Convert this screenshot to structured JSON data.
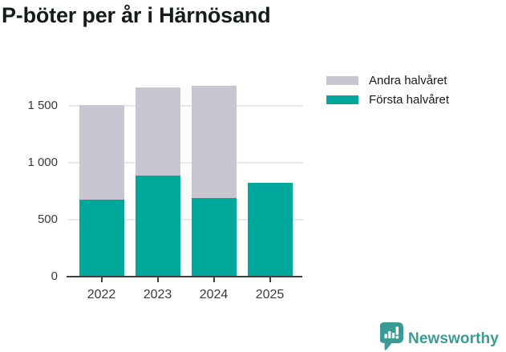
{
  "title": "P-böter per år i Härnösand",
  "legend": {
    "items": [
      {
        "label": "Andra halvåret",
        "color": "#c9c6d1"
      },
      {
        "label": "Första halvåret",
        "color": "#00a79b"
      }
    ]
  },
  "chart_data": {
    "type": "bar",
    "stacked": true,
    "title": "P-böter per år i Härnösand",
    "categories": [
      "2022",
      "2023",
      "2024",
      "2025"
    ],
    "series": [
      {
        "name": "Första halvåret",
        "color": "#00a79b",
        "values": [
          675,
          885,
          690,
          825
        ]
      },
      {
        "name": "Andra halvåret",
        "color": "#c9c6d1",
        "values": [
          835,
          775,
          985,
          0
        ]
      }
    ],
    "xlabel": "",
    "ylabel": "",
    "ylim": [
      0,
      1700
    ],
    "yticks": [
      0,
      500,
      1000,
      1500
    ],
    "ytick_labels": [
      "0",
      "500",
      "1 000",
      "1 500"
    ],
    "grid": true,
    "legend_position": "top-right"
  },
  "footer": {
    "brand": "Newsworthy",
    "brand_color": "#3a9b95"
  },
  "colors": {
    "first_half": "#00a79b",
    "second_half": "#c9c6d1",
    "axis": "#404040",
    "gridline": "#e9e8ec",
    "text": "#3a3a3a",
    "title": "#161d18"
  }
}
